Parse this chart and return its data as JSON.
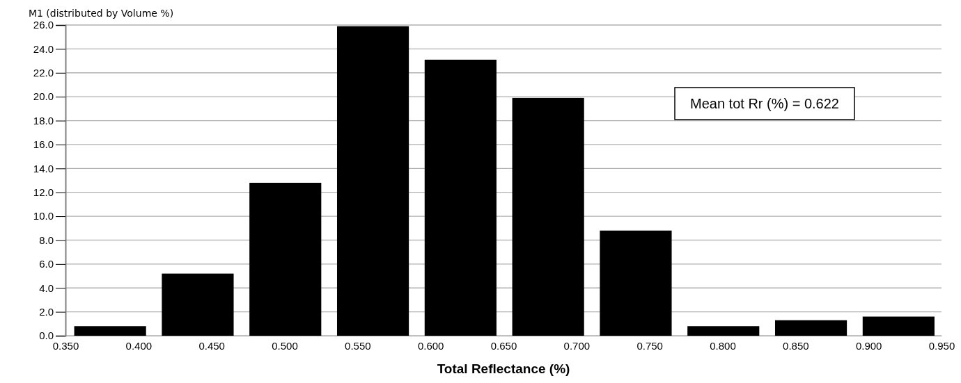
{
  "chart_data": {
    "type": "histogram",
    "title": "M1 (distributed by Volume %)",
    "xlabel": "Total Reflectance (%)",
    "bins": [
      0.35,
      0.41,
      0.47,
      0.53,
      0.59,
      0.65,
      0.71,
      0.77,
      0.83,
      0.89,
      0.95
    ],
    "values": [
      0.8,
      5.2,
      12.8,
      25.9,
      23.1,
      19.9,
      8.8,
      0.8,
      1.3,
      1.6
    ],
    "color": "#000000",
    "xlim": [
      0.35,
      0.95
    ],
    "xticks": [
      {
        "value": 0.35,
        "label": "0.350"
      },
      {
        "value": 0.4,
        "label": "0.400"
      },
      {
        "value": 0.45,
        "label": "0.450"
      },
      {
        "value": 0.5,
        "label": "0.500"
      },
      {
        "value": 0.55,
        "label": "0.550"
      },
      {
        "value": 0.6,
        "label": "0.600"
      },
      {
        "value": 0.65,
        "label": "0.650"
      },
      {
        "value": 0.7,
        "label": "0.700"
      },
      {
        "value": 0.75,
        "label": "0.750"
      },
      {
        "value": 0.8,
        "label": "0.800"
      },
      {
        "value": 0.85,
        "label": "0.850"
      },
      {
        "value": 0.9,
        "label": "0.900"
      },
      {
        "value": 0.95,
        "label": "0.950"
      }
    ],
    "ylim": [
      0,
      26
    ],
    "yticks": [
      {
        "value": 0,
        "label": "0.0"
      },
      {
        "value": 2,
        "label": "2.0"
      },
      {
        "value": 4,
        "label": "4.0"
      },
      {
        "value": 6,
        "label": "6.0"
      },
      {
        "value": 8,
        "label": "8.0"
      },
      {
        "value": 10,
        "label": "10.0"
      },
      {
        "value": 12,
        "label": "12.0"
      },
      {
        "value": 14,
        "label": "14.0"
      },
      {
        "value": 16,
        "label": "16.0"
      },
      {
        "value": 18,
        "label": "18.0"
      },
      {
        "value": 20,
        "label": "20.0"
      },
      {
        "value": 22,
        "label": "22.0"
      },
      {
        "value": 24,
        "label": "24.0"
      },
      {
        "value": 26,
        "label": "26.0"
      }
    ],
    "grid": "y",
    "annotations": [
      "Mean tot Rr (%) = 0.622"
    ]
  }
}
